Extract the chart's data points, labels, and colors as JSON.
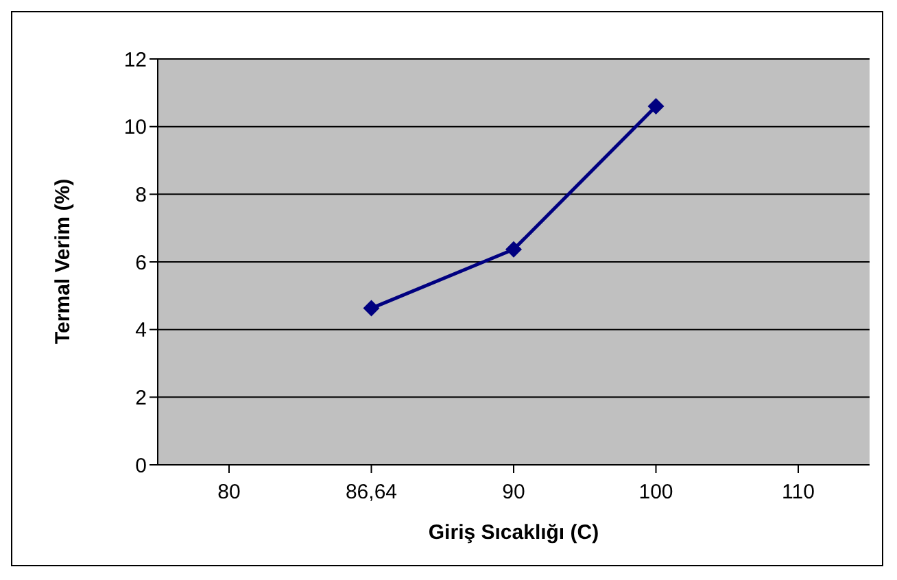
{
  "chart_data": {
    "type": "line",
    "xlabel": "Giriş Sıcaklığı (C)",
    "ylabel": "Termal Verim (%)",
    "categories": [
      "80",
      "86,64",
      "90",
      "100",
      "110"
    ],
    "series": [
      {
        "color": "#000080",
        "values": [
          null,
          4.63,
          6.37,
          10.6,
          null
        ]
      }
    ],
    "ylim": [
      0,
      12
    ],
    "yticks": [
      0,
      2,
      4,
      6,
      8,
      10,
      12
    ],
    "grid": "y",
    "legend": false,
    "marker": "diamond",
    "line_style": "solid"
  }
}
